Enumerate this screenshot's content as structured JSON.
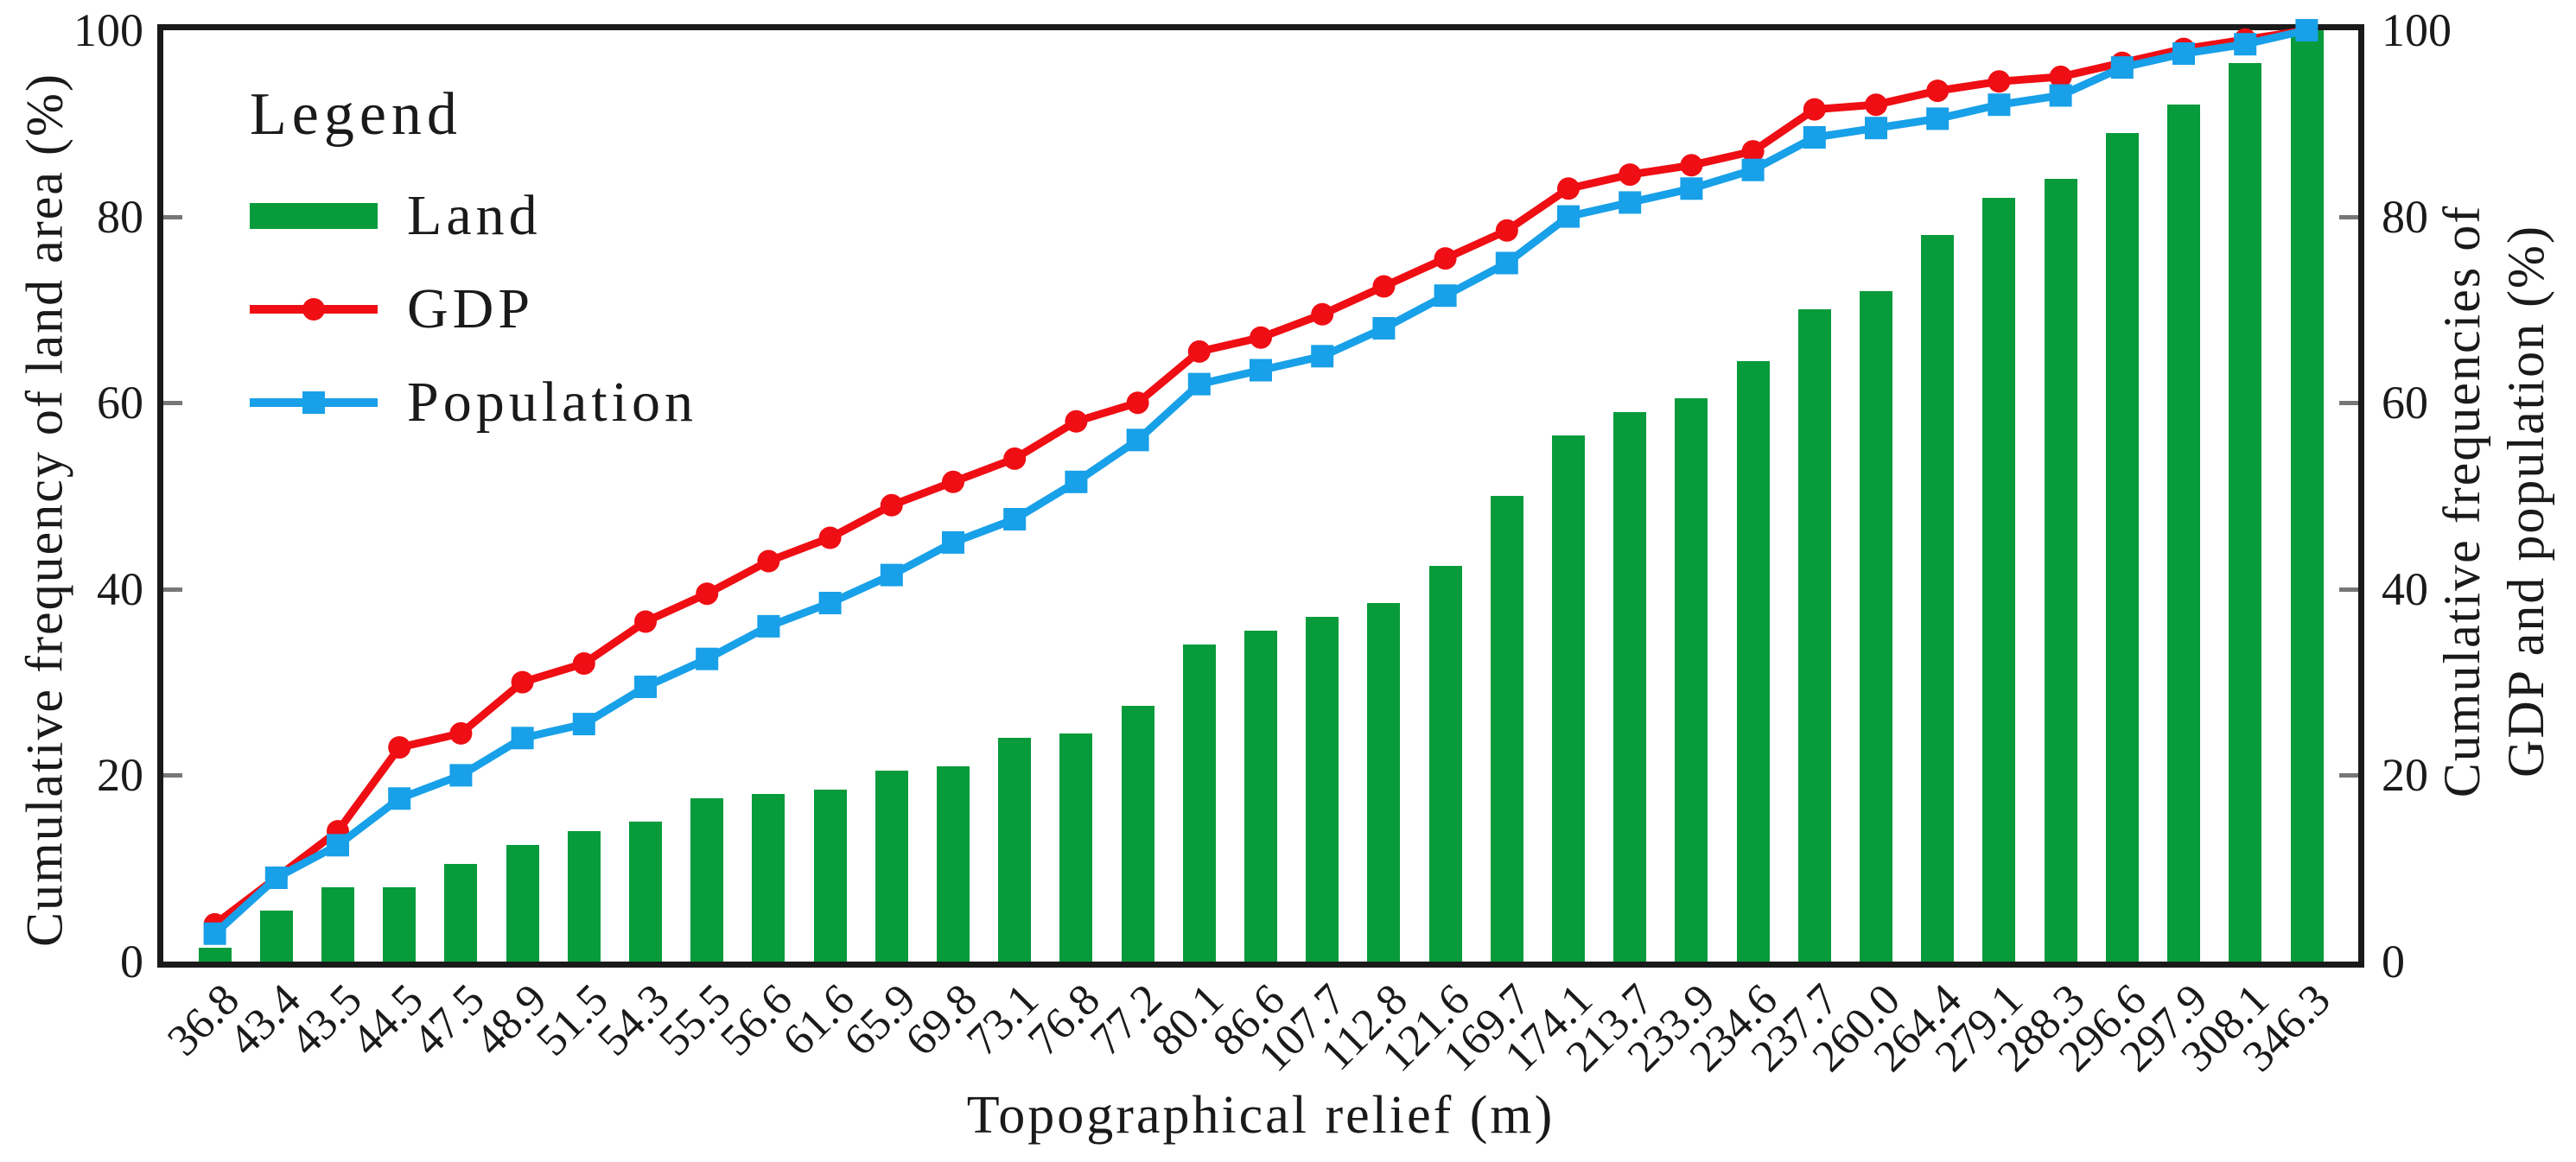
{
  "chart_data": {
    "type": "combo",
    "categories": [
      "36.8",
      "43.4",
      "43.5",
      "44.5",
      "47.5",
      "48.9",
      "51.5",
      "54.3",
      "55.5",
      "56.6",
      "61.6",
      "65.9",
      "69.8",
      "73.1",
      "76.8",
      "77.2",
      "80.1",
      "86.6",
      "107.7",
      "112.8",
      "121.6",
      "169.7",
      "174.1",
      "213.7",
      "233.9",
      "234.6",
      "237.7",
      "260.0",
      "264.4",
      "279.1",
      "288.3",
      "296.6",
      "297.9",
      "308.1",
      "346.3"
    ],
    "series": [
      {
        "name": "Land",
        "type": "bar",
        "axis": "left",
        "marker": "rect",
        "color": "#089B3B",
        "values": [
          1.5,
          5.5,
          8,
          8,
          10.5,
          12.5,
          14,
          15,
          17.5,
          18,
          18.5,
          20.5,
          21,
          24,
          24.5,
          27.5,
          34,
          35.5,
          37,
          38.5,
          42.5,
          50,
          56.5,
          59,
          60.5,
          64.5,
          70,
          72,
          78,
          82,
          84,
          89,
          92,
          96.5,
          100
        ]
      },
      {
        "name": "GDP",
        "type": "line",
        "axis": "right",
        "marker": "circle",
        "color": "#EE0E13",
        "values": [
          4,
          9,
          14,
          23,
          24.5,
          30,
          32,
          36.5,
          39.5,
          43,
          45.5,
          49,
          51.5,
          54,
          58,
          60,
          65.5,
          67,
          69.5,
          72.5,
          75.5,
          78.5,
          83,
          84.5,
          85.5,
          87,
          91.5,
          92,
          93.5,
          94.5,
          95,
          96.5,
          98,
          99,
          100
        ]
      },
      {
        "name": "Population",
        "type": "line",
        "axis": "right",
        "marker": "square",
        "color": "#18A0E8",
        "values": [
          3,
          9,
          12.5,
          17.5,
          20,
          24,
          25.5,
          29.5,
          32.5,
          36,
          38.5,
          41.5,
          45,
          47.5,
          51.5,
          56,
          62,
          63.5,
          65,
          68,
          71.5,
          75,
          80,
          81.5,
          83,
          85,
          88.5,
          89.5,
          90.5,
          92,
          93,
          96,
          97.5,
          98.5,
          100
        ]
      }
    ],
    "xlabel": "Topographical relief (m)",
    "ylabel_left": "Cumulative frequency of land area (%)",
    "ylabel_right_line1": "Cumulative frequencies of",
    "ylabel_right_line2": "GDP and population (%)",
    "y_ticks": [
      0,
      20,
      40,
      60,
      80,
      100
    ],
    "ylim": [
      0,
      100
    ],
    "grid": false,
    "legend_title": "Legend",
    "legend_position": "top-left-inside",
    "frame_color": "#1a1a1a",
    "tick_color": "#777777"
  }
}
